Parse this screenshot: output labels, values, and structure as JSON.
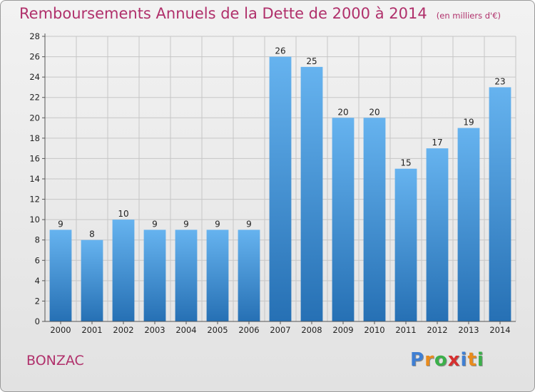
{
  "header": {
    "title": "Remboursements Annuels de la Dette de 2000 à 2014",
    "unit": "(en milliers d'€)"
  },
  "footer": {
    "town": "BONZAC",
    "logo_letters": [
      "P",
      "r",
      "o",
      "x",
      "i",
      "t",
      "i"
    ],
    "logo_colors": [
      "#3f7fd3",
      "#e98b1d",
      "#3bb04a",
      "#d63030",
      "#3f7fd3",
      "#e98b1d",
      "#3bb04a"
    ]
  },
  "colors": {
    "title": "#b0306b",
    "bar_light": "#66b3ef",
    "bar_dark": "#2670b4",
    "grid": "#c6c6c6",
    "axis": "#555555"
  },
  "chart_data": {
    "type": "bar",
    "title": "Remboursements Annuels de la Dette de 2000 à 2014",
    "xlabel": "",
    "ylabel": "",
    "categories": [
      "2000",
      "2001",
      "2002",
      "2003",
      "2004",
      "2005",
      "2006",
      "2007",
      "2008",
      "2009",
      "2010",
      "2011",
      "2012",
      "2013",
      "2014"
    ],
    "values": [
      9,
      8,
      10,
      9,
      9,
      9,
      9,
      26,
      25,
      20,
      20,
      15,
      17,
      19,
      23
    ],
    "ylim": [
      0,
      28
    ],
    "yticks": [
      0,
      2,
      4,
      6,
      8,
      10,
      12,
      14,
      16,
      18,
      20,
      22,
      24,
      26,
      28
    ],
    "grid": true,
    "legend": "none"
  }
}
